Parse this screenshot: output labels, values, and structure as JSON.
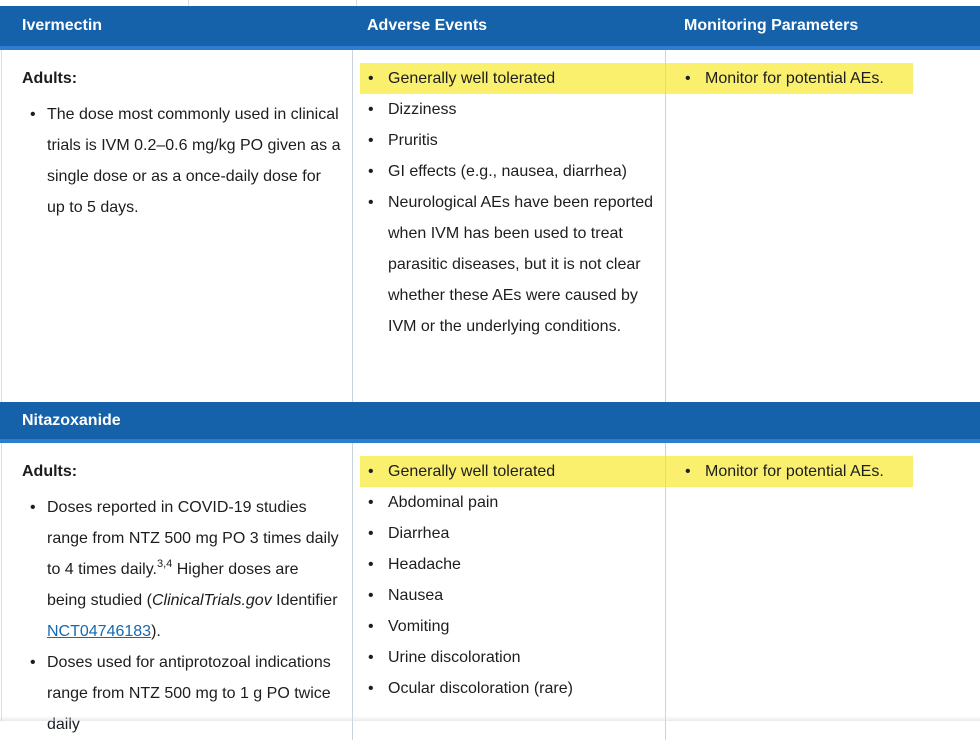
{
  "colors": {
    "header_bg": "#1561AA",
    "header_accent": "#2F7DCE",
    "highlight": "#FAF06E",
    "text": "#1C1D1F",
    "link": "#1569B4",
    "divider": "#CBD3DC"
  },
  "table": {
    "column_headers": [
      "Ivermectin",
      "Adverse Events",
      "Monitoring Parameters"
    ],
    "sections": [
      {
        "title": "Ivermectin",
        "adults_label": "Adults:",
        "dosing": [
          {
            "runs": [
              {
                "text": "The dose most commonly used in clinical trials is IVM 0.2–0.6 mg/kg PO given as a single dose or as a once-daily dose for up to 5 days."
              }
            ]
          }
        ],
        "adverse_events": [
          {
            "text": "Generally well tolerated",
            "highlight": true
          },
          {
            "text": "Dizziness"
          },
          {
            "text": "Pruritis"
          },
          {
            "text": "GI effects (e.g., nausea, diarrhea)"
          },
          {
            "text": "Neurological AEs have been reported when IVM has been used to treat parasitic diseases, but it is not clear whether these AEs were caused by IVM or the underlying conditions."
          }
        ],
        "monitoring": [
          {
            "text": "Monitor for potential AEs.",
            "highlight": true
          }
        ]
      },
      {
        "title": "Nitazoxanide",
        "adults_label": "Adults:",
        "dosing": [
          {
            "runs": [
              {
                "text": "Doses reported in COVID-19 studies range from NTZ 500 mg PO 3 times daily to 4 times daily."
              },
              {
                "sup": "3,4"
              },
              {
                "text": " Higher doses are being studied ("
              },
              {
                "italic": "ClinicalTrials.gov"
              },
              {
                "text": " Identifier "
              },
              {
                "link": "NCT04746183"
              },
              {
                "text": ")."
              }
            ]
          },
          {
            "runs": [
              {
                "text": "Doses used for antiprotozoal indications range from NTZ 500 mg to 1 g PO twice daily"
              }
            ]
          }
        ],
        "adverse_events": [
          {
            "text": "Generally well tolerated",
            "highlight": true
          },
          {
            "text": "Abdominal pain"
          },
          {
            "text": "Diarrhea"
          },
          {
            "text": "Headache"
          },
          {
            "text": "Nausea"
          },
          {
            "text": "Vomiting"
          },
          {
            "text": "Urine discoloration"
          },
          {
            "text": "Ocular discoloration (rare)"
          }
        ],
        "monitoring": [
          {
            "text": "Monitor for potential AEs.",
            "highlight": true
          }
        ]
      }
    ]
  }
}
